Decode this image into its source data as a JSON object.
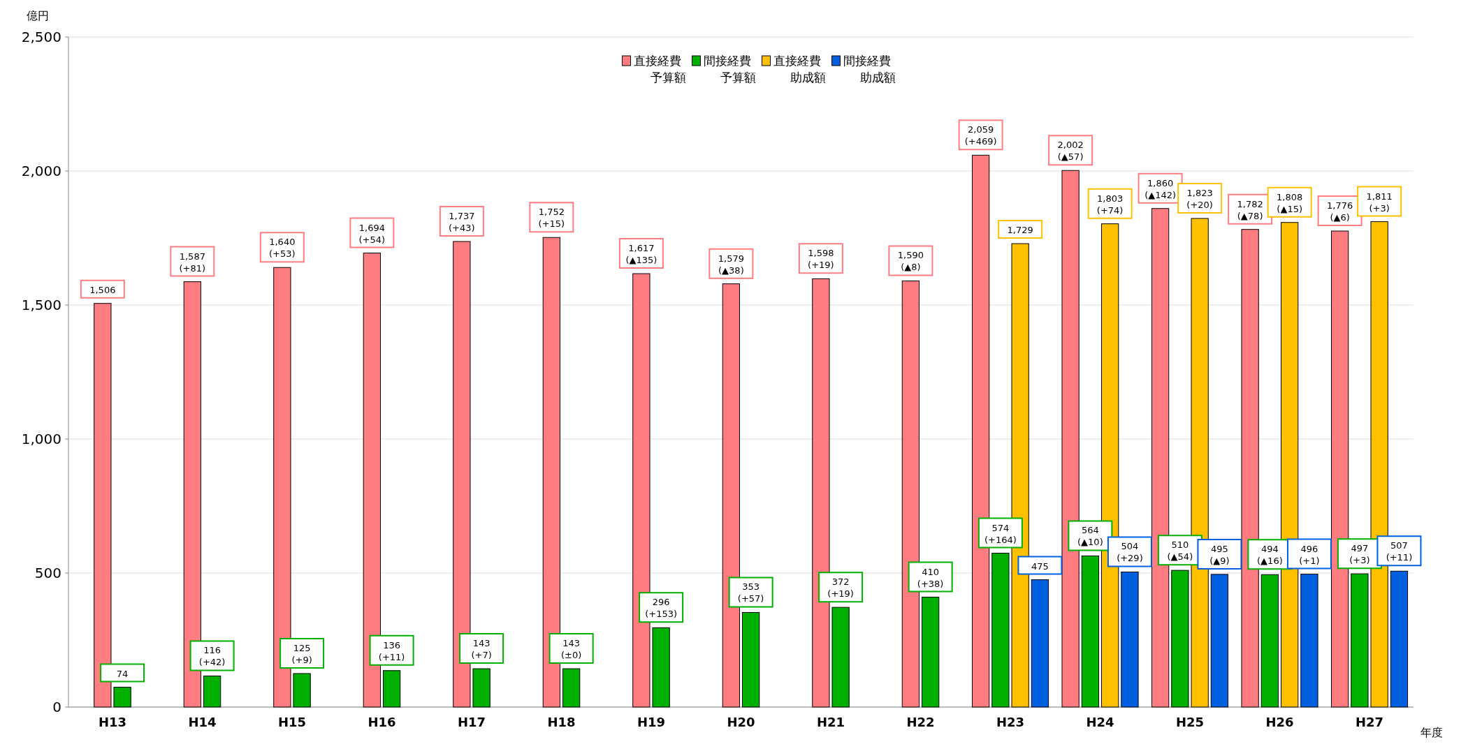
{
  "chart_data": {
    "type": "bar",
    "ylabel": "億円",
    "xlabel": "年度",
    "categories": [
      "H13",
      "H14",
      "H15",
      "H16",
      "H17",
      "H18",
      "H19",
      "H20",
      "H21",
      "H22",
      "H23",
      "H24",
      "H25",
      "H26",
      "H27"
    ],
    "series": [
      {
        "name": "直接経費予算額",
        "color": "#ff7c80",
        "values": [
          1506,
          1587,
          1640,
          1694,
          1737,
          1752,
          1617,
          1579,
          1598,
          1590,
          2059,
          2002,
          1860,
          1782,
          1776
        ],
        "value_labels": [
          "1,506",
          "1,587\n(+81)",
          "1,640\n(+53)",
          "1,694\n(+54)",
          "1,737\n(+43)",
          "1,752\n(+15)",
          "1,617\n(▲135)",
          "1,579\n(▲38)",
          "1,598\n(+19)",
          "1,590\n(▲8)",
          "2,059\n(+469)",
          "2,002\n(▲57)",
          "1,860\n(▲142)",
          "1,782\n(▲78)",
          "1,776\n(▲6)"
        ]
      },
      {
        "name": "間接経費予算額",
        "color": "#00b000",
        "values": [
          74,
          116,
          125,
          136,
          143,
          143,
          296,
          353,
          372,
          410,
          574,
          564,
          510,
          494,
          497
        ],
        "value_labels": [
          "74",
          "116\n(+42)",
          "125\n(+9)",
          "136\n(+11)",
          "143\n(+7)",
          "143\n(±0)",
          "296\n(+153)",
          "353\n(+57)",
          "372\n(+19)",
          "410\n(+38)",
          "574\n(+164)",
          "564\n(▲10)",
          "510\n(▲54)",
          "494\n(▲16)",
          "497\n(+3)"
        ]
      },
      {
        "name": "直接経費助成額",
        "color": "#ffc000",
        "values": [
          null,
          null,
          null,
          null,
          null,
          null,
          null,
          null,
          null,
          null,
          1729,
          1803,
          1823,
          1808,
          1811
        ],
        "value_labels": [
          null,
          null,
          null,
          null,
          null,
          null,
          null,
          null,
          null,
          null,
          "1,729",
          "1,803\n(+74)",
          "1,823\n(+20)",
          "1,808\n(▲15)",
          "1,811\n(+3)"
        ]
      },
      {
        "name": "間接経費助成額",
        "color": "#0060e0",
        "values": [
          null,
          null,
          null,
          null,
          null,
          null,
          null,
          null,
          null,
          null,
          475,
          504,
          495,
          496,
          507
        ],
        "value_labels": [
          null,
          null,
          null,
          null,
          null,
          null,
          null,
          null,
          null,
          null,
          "475",
          "504\n(+29)",
          "495\n(▲9)",
          "496\n(+1)",
          "507\n(+11)"
        ]
      }
    ],
    "ylim": [
      0,
      2500
    ],
    "yticks": [
      {
        "value": 0,
        "label": "0"
      },
      {
        "value": 500,
        "label": "500"
      },
      {
        "value": 1000,
        "label": "1,000"
      },
      {
        "value": 1500,
        "label": "1,500"
      },
      {
        "value": 2000,
        "label": "2,000"
      },
      {
        "value": 2500,
        "label": "2,500"
      }
    ],
    "grid": "y",
    "legend": "top"
  }
}
